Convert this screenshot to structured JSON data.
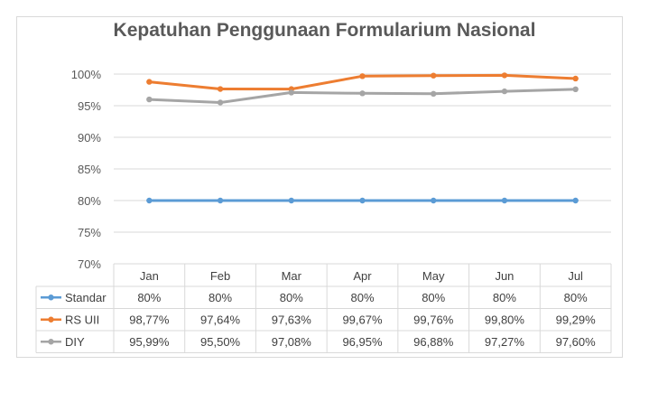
{
  "chart_data": {
    "type": "line",
    "title": "Kepatuhan Penggunaan Formularium Nasional",
    "categories": [
      "Jan",
      "Feb",
      "Mar",
      "Apr",
      "May",
      "Jun",
      "Jul"
    ],
    "yticks": [
      "100%",
      "95%",
      "90%",
      "85%",
      "80%",
      "75%",
      "70%"
    ],
    "ylim": [
      70,
      100
    ],
    "grid": true,
    "legend": "data-table",
    "series": [
      {
        "name": "Standar",
        "color": "#5b9bd5",
        "values": [
          80,
          80,
          80,
          80,
          80,
          80,
          80
        ],
        "labels": [
          "80%",
          "80%",
          "80%",
          "80%",
          "80%",
          "80%",
          "80%"
        ]
      },
      {
        "name": "RS UII",
        "color": "#ed7d31",
        "values": [
          98.77,
          97.64,
          97.63,
          99.67,
          99.76,
          99.8,
          99.29
        ],
        "labels": [
          "98,77%",
          "97,64%",
          "97,63%",
          "99,67%",
          "99,76%",
          "99,80%",
          "99,29%"
        ]
      },
      {
        "name": "DIY",
        "color": "#a5a5a5",
        "values": [
          95.99,
          95.5,
          97.08,
          96.95,
          96.88,
          97.27,
          97.6
        ],
        "labels": [
          "95,99%",
          "95,50%",
          "97,08%",
          "96,95%",
          "96,88%",
          "97,27%",
          "97,60%"
        ]
      }
    ]
  }
}
